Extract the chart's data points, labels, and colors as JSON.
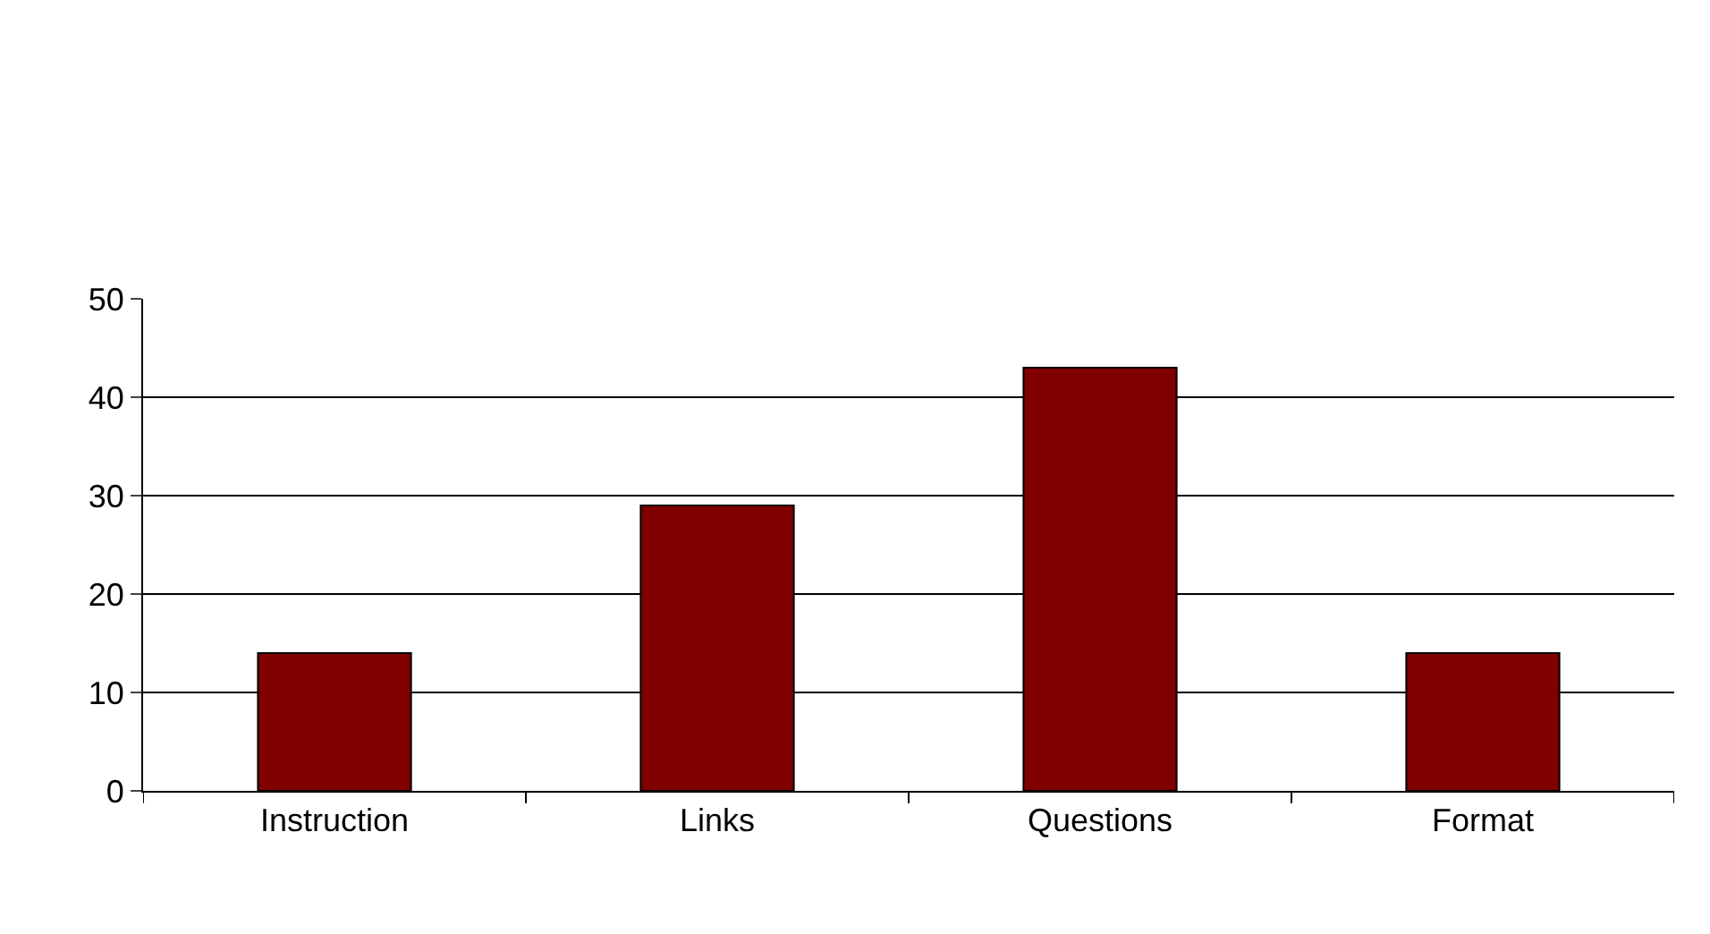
{
  "chart_data": {
    "type": "bar",
    "categories": [
      "Instruction",
      "Links",
      "Questions",
      "Format"
    ],
    "values": [
      14,
      29,
      43,
      14
    ],
    "color": "#800000",
    "ylim": [
      0,
      50
    ],
    "yticks": [
      0,
      10,
      20,
      30,
      40,
      50
    ],
    "grid": "y",
    "legend": false
  }
}
